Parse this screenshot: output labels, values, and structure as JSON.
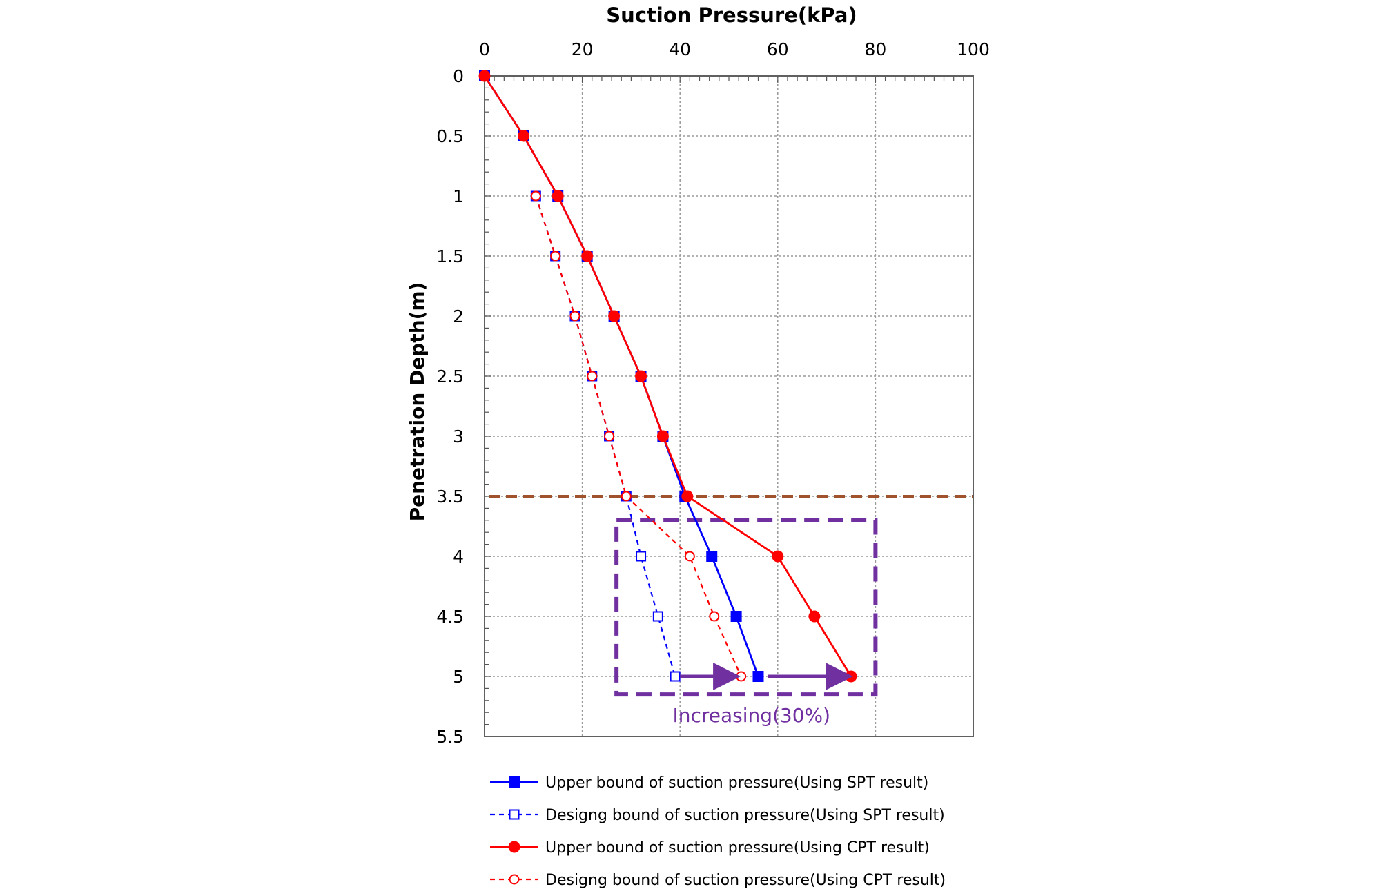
{
  "chart_data": {
    "type": "line",
    "title": "Suction Pressure(kPa)",
    "xlabel": "Suction Pressure(kPa)",
    "ylabel": "Penetration Depth(m)",
    "xlim": [
      0,
      100
    ],
    "ylim": [
      0,
      5.5
    ],
    "x_ticks": [
      0,
      20,
      40,
      60,
      80,
      100
    ],
    "y_ticks": [
      0,
      0.5,
      1,
      1.5,
      2,
      2.5,
      3,
      3.5,
      4,
      4.5,
      5,
      5.5
    ],
    "x_axis_position": "top",
    "y_axis_inverted": true,
    "grid": true,
    "series": [
      {
        "name": "Upper bound of suction pressure(Using SPT result)",
        "color": "#0000ff",
        "line": "solid",
        "marker": "square-filled",
        "x": [
          0,
          8,
          15,
          21,
          26.5,
          32,
          36.5,
          41,
          46.5,
          51.5,
          56
        ],
        "y": [
          0,
          0.5,
          1,
          1.5,
          2,
          2.5,
          3,
          3.5,
          4,
          4.5,
          5
        ]
      },
      {
        "name": "Designg bound of suction pressure(Using SPT result)",
        "color": "#0000ff",
        "line": "dashed",
        "marker": "square-open",
        "x": [
          10.5,
          14.5,
          18.5,
          22,
          25.5,
          29,
          32,
          35.5,
          39
        ],
        "y": [
          1,
          1.5,
          2,
          2.5,
          3,
          3.5,
          4,
          4.5,
          5
        ]
      },
      {
        "name": "Upper bound of suction pressure(Using CPT result)",
        "color": "#ff0000",
        "line": "solid",
        "marker": "circle-filled",
        "x": [
          0,
          8,
          15,
          21,
          26.5,
          32,
          36.5,
          41.5,
          60,
          67.5,
          75
        ],
        "y": [
          0,
          0.5,
          1,
          1.5,
          2,
          2.5,
          3,
          3.5,
          4,
          4.5,
          5
        ]
      },
      {
        "name": "Designg bound of suction pressure(Using CPT result)",
        "color": "#ff0000",
        "line": "dashed",
        "marker": "circle-open",
        "x": [
          10.5,
          14.5,
          18.5,
          22,
          25.5,
          29,
          42,
          47,
          52.5
        ],
        "y": [
          1,
          1.5,
          2,
          2.5,
          3,
          3.5,
          4,
          4.5,
          5
        ]
      }
    ],
    "reference_line": {
      "y": 3.5,
      "color": "#a0522d",
      "style": "dashed"
    },
    "annotation": {
      "text": "Increasing(30%)",
      "color": "#7030a0",
      "box": {
        "x": [
          27,
          80
        ],
        "y": [
          3.7,
          5.15
        ]
      },
      "arrows": [
        {
          "from": [
            40,
            5
          ],
          "to": [
            51,
            5
          ]
        },
        {
          "from": [
            58,
            5
          ],
          "to": [
            74,
            5
          ]
        }
      ]
    },
    "legend_position": "bottom"
  }
}
